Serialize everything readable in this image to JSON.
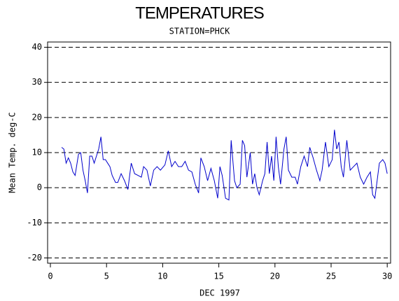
{
  "chart_data": {
    "type": "line",
    "title": "TEMPERATURES",
    "subtitle": "STATION=PHCK",
    "x_label": "DEC 1997",
    "y_label": "Mean Temp. deg-C",
    "xlim": [
      -0.25,
      30.3
    ],
    "ylim": [
      -21.5,
      41.5
    ],
    "xticks": [
      0,
      5,
      10,
      15,
      20,
      25,
      30
    ],
    "yticks": [
      -20,
      -10,
      0,
      10,
      20,
      30,
      40
    ],
    "grid": true,
    "series": [
      {
        "color": "#0000cc",
        "x": [
          1.0,
          1.2,
          1.4,
          1.6,
          1.8,
          2.0,
          2.2,
          2.5,
          2.7,
          2.9,
          3.1,
          3.3,
          3.5,
          3.7,
          3.9,
          4.1,
          4.3,
          4.5,
          4.7,
          4.9,
          5.1,
          5.3,
          5.5,
          5.8,
          6.0,
          6.3,
          6.6,
          6.9,
          7.2,
          7.5,
          7.8,
          8.1,
          8.3,
          8.6,
          8.9,
          9.2,
          9.5,
          9.8,
          10.2,
          10.5,
          10.8,
          11.1,
          11.4,
          11.7,
          12.0,
          12.3,
          12.6,
          12.9,
          13.2,
          13.4,
          13.7,
          14.0,
          14.3,
          14.6,
          14.9,
          15.1,
          15.3,
          15.6,
          15.9,
          16.1,
          16.4,
          16.6,
          16.9,
          17.1,
          17.3,
          17.5,
          17.8,
          18.0,
          18.2,
          18.4,
          18.6,
          18.9,
          19.1,
          19.3,
          19.5,
          19.7,
          19.9,
          20.1,
          20.3,
          20.5,
          20.8,
          21.0,
          21.2,
          21.5,
          21.8,
          22.0,
          22.3,
          22.6,
          22.9,
          23.1,
          23.4,
          23.7,
          24.0,
          24.2,
          24.5,
          24.8,
          25.1,
          25.3,
          25.5,
          25.7,
          25.9,
          26.1,
          26.4,
          26.7,
          27.0,
          27.3,
          27.6,
          27.9,
          28.2,
          28.5,
          28.7,
          28.9,
          29.1,
          29.3,
          29.6,
          29.8,
          30.0
        ],
        "values": [
          11.5,
          11,
          7,
          8.5,
          7,
          4.5,
          3.5,
          9.5,
          10,
          5,
          2,
          -1.5,
          9,
          9,
          7,
          9,
          11,
          14.5,
          8,
          8,
          7,
          6,
          3.5,
          1.5,
          1.5,
          4,
          2,
          -0.5,
          7,
          4,
          3.5,
          3,
          6,
          5,
          0.5,
          5,
          6,
          5,
          6.5,
          10.5,
          6,
          7.5,
          6,
          6,
          7.5,
          5,
          4.5,
          1,
          -1.5,
          8.5,
          6,
          2,
          5.5,
          2,
          -3,
          6,
          3.5,
          -3,
          -3.5,
          13.5,
          2,
          0,
          1,
          13.5,
          12,
          3,
          10,
          1,
          4,
          0,
          -2,
          2,
          4,
          13,
          4,
          9,
          2,
          14.5,
          6,
          1,
          11,
          14.5,
          5,
          3,
          3,
          1,
          6,
          9,
          6,
          11.5,
          8.5,
          5,
          2,
          5,
          13,
          6,
          8,
          16.5,
          11,
          13,
          6,
          3,
          13.5,
          5,
          6,
          7,
          3,
          1,
          3,
          4.5,
          -2,
          -3,
          2,
          7,
          8,
          7,
          4
        ]
      }
    ]
  }
}
